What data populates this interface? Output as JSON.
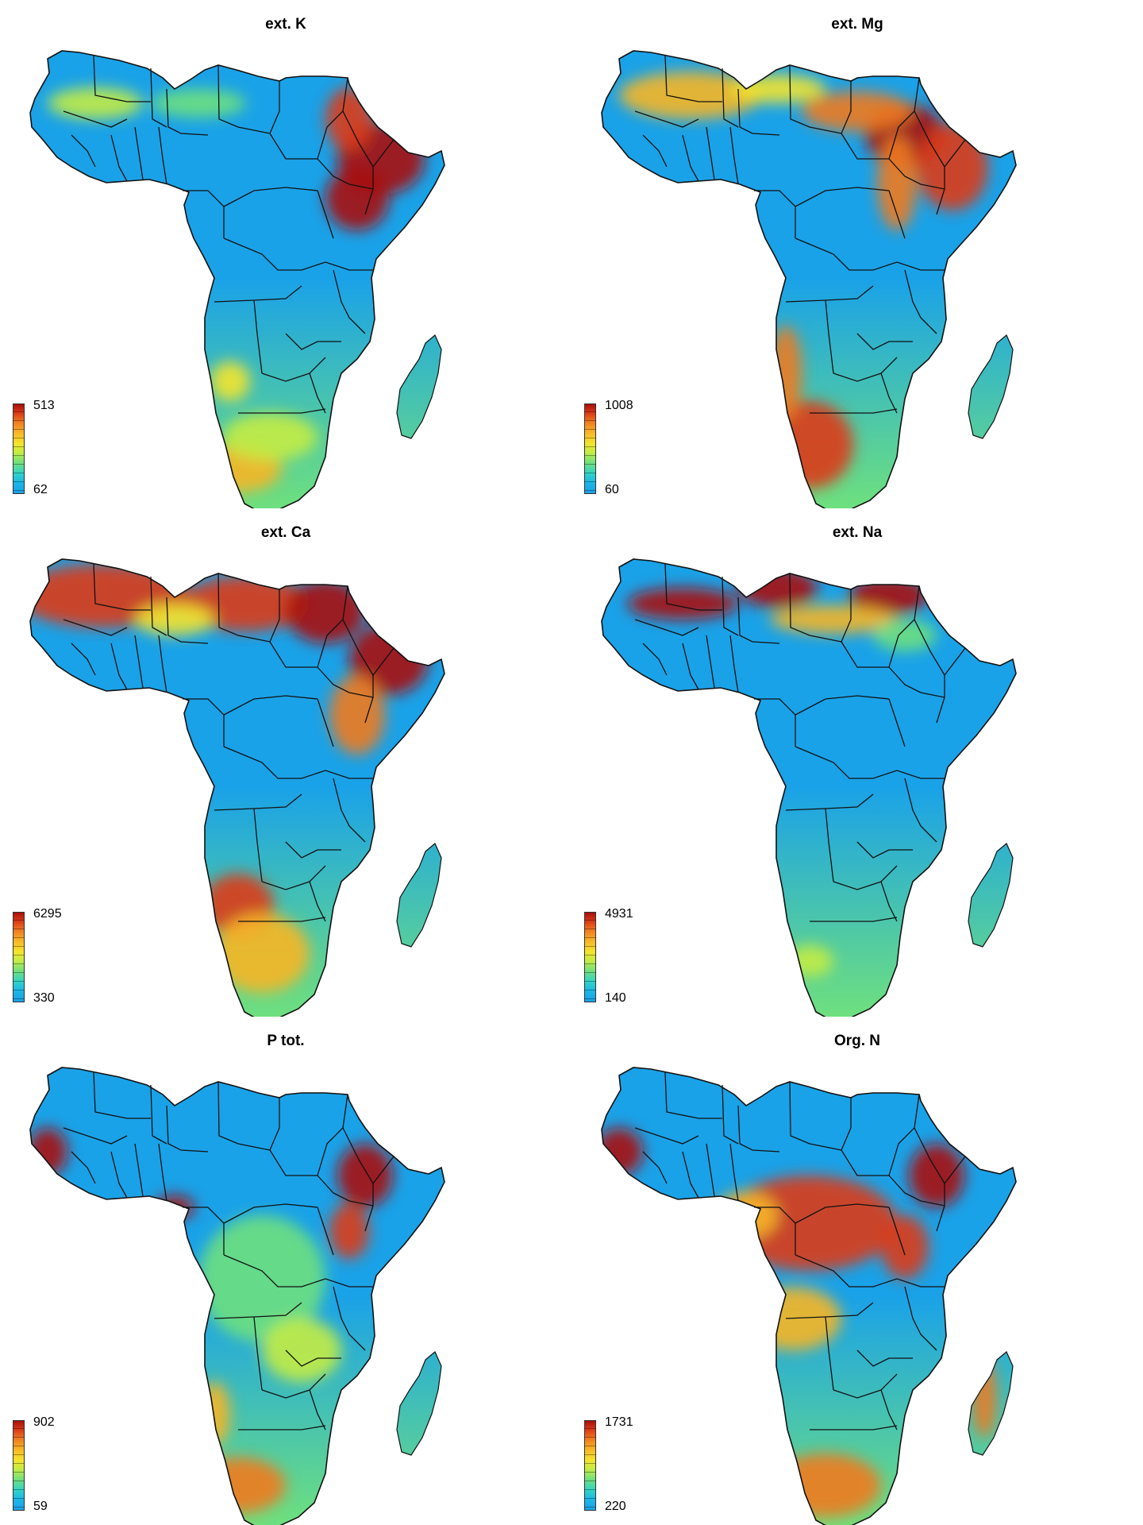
{
  "panels": [
    {
      "title": "ext. K",
      "legend": {
        "max": "513",
        "min": "62"
      },
      "palette": {
        "low": "#1aa2e8",
        "mid": "#6fe07e",
        "high": "#a80f0c"
      },
      "pattern": "k"
    },
    {
      "title": "ext. Mg",
      "legend": {
        "max": "1008",
        "min": "60"
      },
      "palette": {
        "low": "#1aa2e8",
        "mid": "#6fe07e",
        "high": "#a80f0c"
      },
      "pattern": "mg"
    },
    {
      "title": "ext. Ca",
      "legend": {
        "max": "6295",
        "min": "330"
      },
      "palette": {
        "low": "#1aa2e8",
        "mid": "#6fe07e",
        "high": "#a80f0c"
      },
      "pattern": "ca"
    },
    {
      "title": "ext. Na",
      "legend": {
        "max": "4931",
        "min": "140"
      },
      "palette": {
        "low": "#1aa2e8",
        "mid": "#6fe07e",
        "high": "#a80f0c"
      },
      "pattern": "na"
    },
    {
      "title": "P tot.",
      "legend": {
        "max": "902",
        "min": "59"
      },
      "palette": {
        "low": "#1aa2e8",
        "mid": "#6fe07e",
        "high": "#a80f0c"
      },
      "pattern": "p"
    },
    {
      "title": "Org. N",
      "legend": {
        "max": "1731",
        "min": "220"
      },
      "palette": {
        "low": "#1aa2e8",
        "mid": "#6fe07e",
        "high": "#a80f0c"
      },
      "pattern": "n"
    }
  ]
}
